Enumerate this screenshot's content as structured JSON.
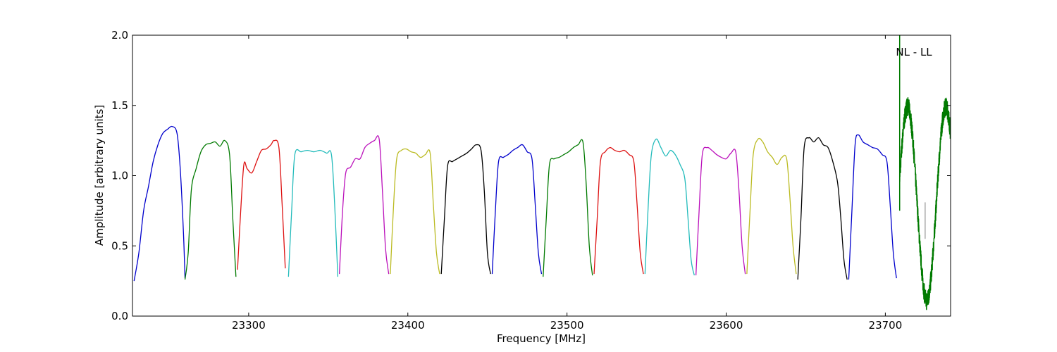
{
  "chart_data": {
    "type": "line",
    "title": "",
    "xlabel": "Frequency [MHz]",
    "ylabel": "Amplitude [arbitrary units]",
    "xlim": [
      23227,
      23741
    ],
    "ylim": [
      0.0,
      2.0
    ],
    "x_ticks": [
      23300,
      23400,
      23500,
      23600,
      23700
    ],
    "y_ticks": [
      0.0,
      0.5,
      1.0,
      1.5,
      2.0
    ],
    "y_tick_labels": [
      "0.0",
      "0.5",
      "1.0",
      "1.5",
      "2.0"
    ],
    "grid": false,
    "annotation": {
      "text": "NL - LL",
      "x": 23718,
      "y": 1.88
    },
    "colors": {
      "blue": "#0000cc",
      "green": "#007a00",
      "red": "#dd1111",
      "cyan": "#22bbbb",
      "magenta": "#bb11bb",
      "olive": "#bbbb22",
      "black": "#000000",
      "gray": "#aaaaaa"
    },
    "series": [
      {
        "color": "blue",
        "points": [
          [
            23228,
            0.25
          ],
          [
            23231,
            0.45
          ],
          [
            23234,
            0.75
          ],
          [
            23237,
            0.92
          ],
          [
            23240,
            1.1
          ],
          [
            23243,
            1.22
          ],
          [
            23246,
            1.3
          ],
          [
            23249,
            1.33
          ],
          [
            23252,
            1.35
          ],
          [
            23255,
            1.3
          ],
          [
            23257,
            1.05
          ],
          [
            23259,
            0.6
          ],
          [
            23260,
            0.27
          ]
        ]
      },
      {
        "color": "green",
        "points": [
          [
            23260,
            0.26
          ],
          [
            23262,
            0.45
          ],
          [
            23264,
            0.9
          ],
          [
            23267,
            1.05
          ],
          [
            23270,
            1.17
          ],
          [
            23273,
            1.22
          ],
          [
            23276,
            1.23
          ],
          [
            23279,
            1.24
          ],
          [
            23282,
            1.21
          ],
          [
            23285,
            1.25
          ],
          [
            23288,
            1.15
          ],
          [
            23290,
            0.7
          ],
          [
            23292,
            0.28
          ]
        ]
      },
      {
        "color": "red",
        "points": [
          [
            23293,
            0.33
          ],
          [
            23295,
            0.75
          ],
          [
            23297,
            1.08
          ],
          [
            23299,
            1.05
          ],
          [
            23302,
            1.02
          ],
          [
            23305,
            1.1
          ],
          [
            23308,
            1.18
          ],
          [
            23311,
            1.19
          ],
          [
            23314,
            1.22
          ],
          [
            23316,
            1.25
          ],
          [
            23319,
            1.2
          ],
          [
            23321,
            0.8
          ],
          [
            23323,
            0.34
          ]
        ]
      },
      {
        "color": "cyan",
        "points": [
          [
            23325,
            0.28
          ],
          [
            23327,
            0.75
          ],
          [
            23329,
            1.15
          ],
          [
            23333,
            1.17
          ],
          [
            23337,
            1.18
          ],
          [
            23341,
            1.17
          ],
          [
            23345,
            1.18
          ],
          [
            23349,
            1.16
          ],
          [
            23352,
            1.15
          ],
          [
            23354,
            0.8
          ],
          [
            23356,
            0.28
          ]
        ]
      },
      {
        "color": "magenta",
        "points": [
          [
            23357,
            0.3
          ],
          [
            23359,
            0.75
          ],
          [
            23361,
            1.02
          ],
          [
            23364,
            1.06
          ],
          [
            23367,
            1.12
          ],
          [
            23370,
            1.12
          ],
          [
            23373,
            1.2
          ],
          [
            23376,
            1.23
          ],
          [
            23379,
            1.25
          ],
          [
            23382,
            1.26
          ],
          [
            23384,
            0.9
          ],
          [
            23386,
            0.48
          ],
          [
            23388,
            0.3
          ]
        ]
      },
      {
        "color": "olive",
        "points": [
          [
            23389,
            0.3
          ],
          [
            23391,
            0.78
          ],
          [
            23393,
            1.12
          ],
          [
            23396,
            1.18
          ],
          [
            23399,
            1.19
          ],
          [
            23402,
            1.17
          ],
          [
            23405,
            1.16
          ],
          [
            23408,
            1.13
          ],
          [
            23411,
            1.15
          ],
          [
            23414,
            1.16
          ],
          [
            23416,
            0.8
          ],
          [
            23418,
            0.45
          ],
          [
            23420,
            0.3
          ]
        ]
      },
      {
        "color": "black",
        "points": [
          [
            23421,
            0.3
          ],
          [
            23423,
            0.7
          ],
          [
            23425,
            1.07
          ],
          [
            23428,
            1.1
          ],
          [
            23431,
            1.12
          ],
          [
            23434,
            1.14
          ],
          [
            23437,
            1.16
          ],
          [
            23440,
            1.19
          ],
          [
            23443,
            1.22
          ],
          [
            23446,
            1.18
          ],
          [
            23448,
            0.9
          ],
          [
            23450,
            0.45
          ],
          [
            23452,
            0.3
          ]
        ]
      },
      {
        "color": "blue",
        "points": [
          [
            23453,
            0.3
          ],
          [
            23455,
            0.75
          ],
          [
            23457,
            1.1
          ],
          [
            23460,
            1.13
          ],
          [
            23463,
            1.15
          ],
          [
            23466,
            1.18
          ],
          [
            23469,
            1.2
          ],
          [
            23472,
            1.22
          ],
          [
            23475,
            1.17
          ],
          [
            23478,
            1.12
          ],
          [
            23480,
            0.8
          ],
          [
            23482,
            0.45
          ],
          [
            23484,
            0.3
          ]
        ]
      },
      {
        "color": "green",
        "points": [
          [
            23485,
            0.28
          ],
          [
            23487,
            0.7
          ],
          [
            23489,
            1.08
          ],
          [
            23492,
            1.12
          ],
          [
            23495,
            1.13
          ],
          [
            23498,
            1.15
          ],
          [
            23501,
            1.17
          ],
          [
            23504,
            1.2
          ],
          [
            23507,
            1.22
          ],
          [
            23510,
            1.24
          ],
          [
            23512,
            0.95
          ],
          [
            23514,
            0.5
          ],
          [
            23516,
            0.29
          ]
        ]
      },
      {
        "color": "red",
        "points": [
          [
            23517,
            0.3
          ],
          [
            23519,
            0.7
          ],
          [
            23521,
            1.1
          ],
          [
            23524,
            1.17
          ],
          [
            23527,
            1.2
          ],
          [
            23530,
            1.18
          ],
          [
            23533,
            1.17
          ],
          [
            23536,
            1.18
          ],
          [
            23539,
            1.15
          ],
          [
            23542,
            1.1
          ],
          [
            23544,
            0.8
          ],
          [
            23546,
            0.45
          ],
          [
            23548,
            0.3
          ]
        ]
      },
      {
        "color": "cyan",
        "points": [
          [
            23549,
            0.3
          ],
          [
            23551,
            0.78
          ],
          [
            23553,
            1.15
          ],
          [
            23556,
            1.26
          ],
          [
            23559,
            1.2
          ],
          [
            23562,
            1.14
          ],
          [
            23565,
            1.18
          ],
          [
            23568,
            1.15
          ],
          [
            23571,
            1.08
          ],
          [
            23574,
            0.98
          ],
          [
            23576,
            0.7
          ],
          [
            23578,
            0.4
          ],
          [
            23580,
            0.29
          ]
        ]
      },
      {
        "color": "magenta",
        "points": [
          [
            23581,
            0.29
          ],
          [
            23583,
            0.75
          ],
          [
            23585,
            1.15
          ],
          [
            23588,
            1.2
          ],
          [
            23591,
            1.18
          ],
          [
            23594,
            1.15
          ],
          [
            23597,
            1.13
          ],
          [
            23600,
            1.12
          ],
          [
            23603,
            1.16
          ],
          [
            23606,
            1.17
          ],
          [
            23608,
            0.9
          ],
          [
            23610,
            0.5
          ],
          [
            23612,
            0.3
          ]
        ]
      },
      {
        "color": "olive",
        "points": [
          [
            23613,
            0.3
          ],
          [
            23615,
            0.75
          ],
          [
            23617,
            1.15
          ],
          [
            23620,
            1.26
          ],
          [
            23623,
            1.24
          ],
          [
            23626,
            1.17
          ],
          [
            23629,
            1.13
          ],
          [
            23632,
            1.08
          ],
          [
            23635,
            1.13
          ],
          [
            23638,
            1.12
          ],
          [
            23640,
            0.85
          ],
          [
            23642,
            0.5
          ],
          [
            23644,
            0.3
          ]
        ]
      },
      {
        "color": "black",
        "points": [
          [
            23645,
            0.26
          ],
          [
            23647,
            0.7
          ],
          [
            23649,
            1.2
          ],
          [
            23652,
            1.27
          ],
          [
            23655,
            1.24
          ],
          [
            23658,
            1.27
          ],
          [
            23661,
            1.22
          ],
          [
            23664,
            1.2
          ],
          [
            23667,
            1.1
          ],
          [
            23670,
            0.95
          ],
          [
            23672,
            0.7
          ],
          [
            23674,
            0.4
          ],
          [
            23676,
            0.26
          ]
        ]
      },
      {
        "color": "blue",
        "points": [
          [
            23677,
            0.26
          ],
          [
            23679,
            0.75
          ],
          [
            23681,
            1.22
          ],
          [
            23683,
            1.29
          ],
          [
            23686,
            1.24
          ],
          [
            23689,
            1.22
          ],
          [
            23692,
            1.2
          ],
          [
            23695,
            1.19
          ],
          [
            23698,
            1.15
          ],
          [
            23701,
            1.1
          ],
          [
            23703,
            0.8
          ],
          [
            23705,
            0.45
          ],
          [
            23707,
            0.27
          ]
        ]
      }
    ],
    "spike": {
      "color": "green",
      "x": 23709,
      "y_top": 2.0,
      "y_bottom": 0.75
    },
    "oscillation": {
      "color": "green",
      "x_start": 23709,
      "x_end": 23741,
      "center": 0.8,
      "amplitude": 0.69,
      "period": 24,
      "phase_peak_x": 23714,
      "noise": 0.07
    },
    "gray_marker": {
      "color": "gray",
      "x": 23725,
      "y_bottom": 0.55,
      "y_top": 0.81
    }
  }
}
